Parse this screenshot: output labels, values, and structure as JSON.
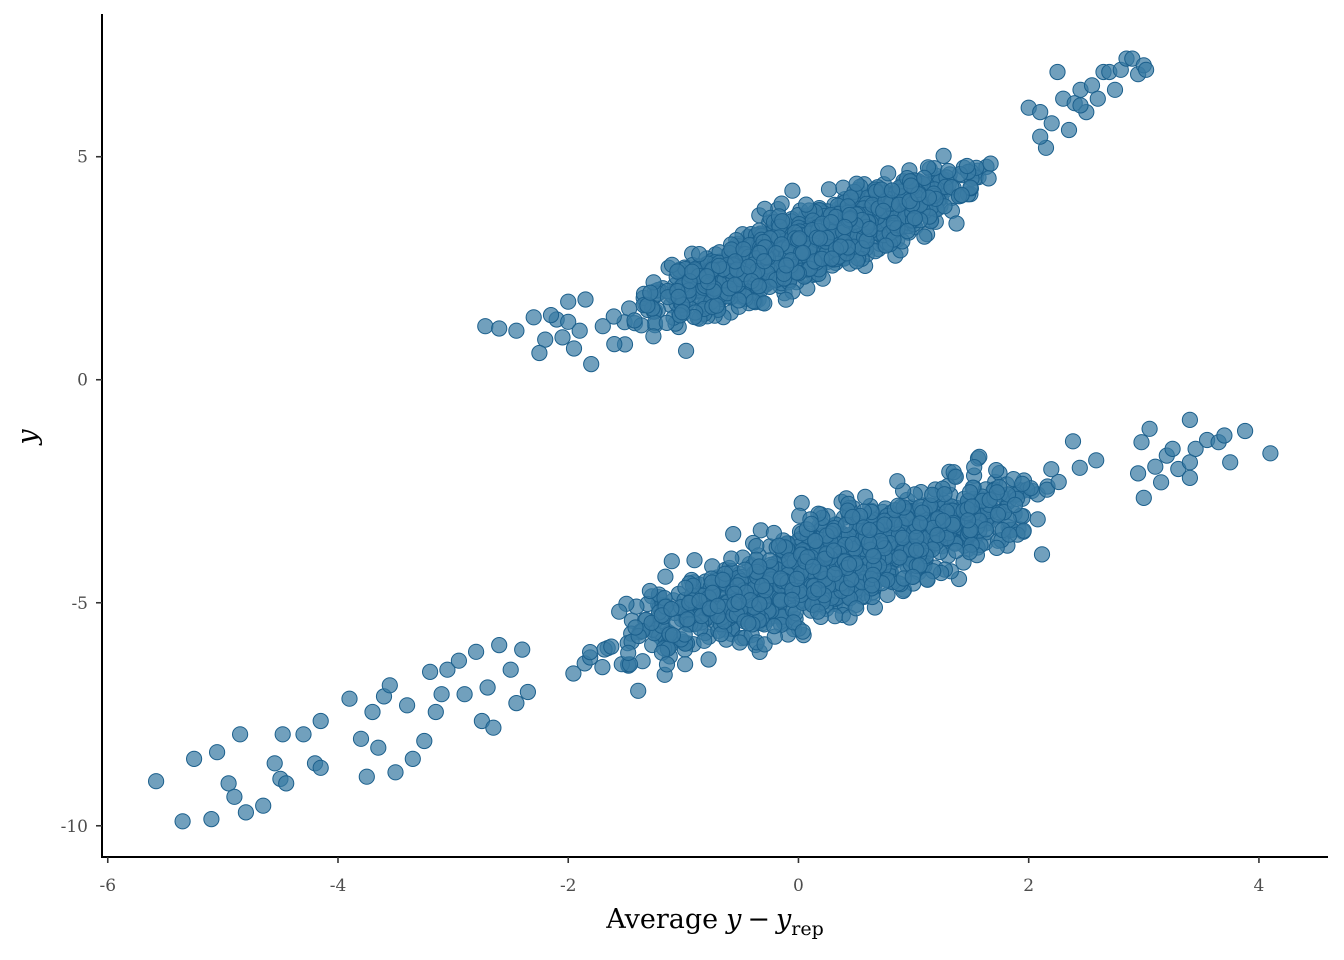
{
  "colors": {
    "point_fill": "#3a7ba3",
    "point_stroke": "#1b5f8c",
    "axis": "#000000",
    "tick_text": "#4d4d4d"
  },
  "chart_data": {
    "type": "scatter",
    "x_label_prefix": "Average",
    "x_label_y": "y",
    "x_label_minus": "−",
    "x_label_yrep_base": "y",
    "x_label_yrep_sub": "rep",
    "ylabel": "y",
    "xlim": [
      -6.05,
      4.6
    ],
    "ylim": [
      -10.7,
      8.2
    ],
    "xticks": [
      -6,
      -4,
      -2,
      0,
      2,
      4
    ],
    "xtick_labels": [
      "-6",
      "-4",
      "-2",
      "0",
      "2",
      "4"
    ],
    "yticks": [
      -10,
      -5,
      0,
      5
    ],
    "ytick_labels": [
      "-10",
      "-5",
      "0",
      "5"
    ],
    "grid": false,
    "legend": "none",
    "clusters": [
      {
        "name": "upper",
        "x_range": [
          -1.75,
          1.85
        ],
        "y_at_x": "y ≈ 2.96 + 1.02·x",
        "y_spread": 0.35,
        "n_points": 1600,
        "tail_points": [
          [
            -2.72,
            1.2
          ],
          [
            -2.6,
            1.15
          ],
          [
            -2.45,
            1.1
          ],
          [
            -2.3,
            1.4
          ],
          [
            -2.2,
            0.9
          ],
          [
            -2.25,
            0.6
          ],
          [
            -2.1,
            1.35
          ],
          [
            -2.05,
            0.95
          ],
          [
            -2.0,
            1.3
          ],
          [
            -1.95,
            0.7
          ],
          [
            -1.9,
            1.1
          ],
          [
            -1.8,
            0.35
          ],
          [
            -2.0,
            1.75
          ],
          [
            -1.85,
            1.8
          ],
          [
            -2.15,
            1.45
          ],
          [
            -1.7,
            1.2
          ],
          [
            -1.6,
            0.8
          ],
          [
            2.0,
            6.1
          ],
          [
            2.1,
            6.0
          ],
          [
            2.15,
            5.2
          ],
          [
            2.2,
            5.75
          ],
          [
            2.3,
            6.3
          ],
          [
            2.35,
            5.6
          ],
          [
            2.4,
            6.2
          ],
          [
            2.45,
            6.5
          ],
          [
            2.5,
            6.0
          ],
          [
            2.55,
            6.6
          ],
          [
            2.6,
            6.3
          ],
          [
            2.65,
            6.9
          ],
          [
            2.7,
            6.9
          ],
          [
            2.75,
            6.5
          ],
          [
            2.8,
            6.95
          ],
          [
            2.85,
            7.2
          ],
          [
            2.9,
            7.2
          ],
          [
            2.95,
            6.85
          ],
          [
            3.0,
            7.05
          ],
          [
            3.02,
            6.95
          ],
          [
            2.25,
            6.9
          ],
          [
            2.45,
            6.15
          ],
          [
            2.1,
            5.45
          ]
        ]
      },
      {
        "name": "lower",
        "x_range": [
          -2.3,
          2.9
        ],
        "y_at_x": "y ≈ -4.44 + 0.90·x",
        "y_spread": 0.5,
        "n_points": 1300,
        "tail_points": [
          [
            -5.58,
            -9.0
          ],
          [
            -5.35,
            -9.9
          ],
          [
            -5.25,
            -8.5
          ],
          [
            -5.1,
            -9.85
          ],
          [
            -5.05,
            -8.35
          ],
          [
            -4.95,
            -9.05
          ],
          [
            -4.9,
            -9.35
          ],
          [
            -4.85,
            -7.95
          ],
          [
            -4.8,
            -9.7
          ],
          [
            -4.65,
            -9.55
          ],
          [
            -4.55,
            -8.6
          ],
          [
            -4.5,
            -8.95
          ],
          [
            -4.48,
            -7.95
          ],
          [
            -4.45,
            -9.05
          ],
          [
            -4.3,
            -7.95
          ],
          [
            -4.2,
            -8.6
          ],
          [
            -4.15,
            -7.65
          ],
          [
            -4.15,
            -8.7
          ],
          [
            -3.9,
            -7.15
          ],
          [
            -3.8,
            -8.05
          ],
          [
            -3.75,
            -8.9
          ],
          [
            -3.7,
            -7.45
          ],
          [
            -3.65,
            -8.25
          ],
          [
            -3.6,
            -7.1
          ],
          [
            -3.55,
            -6.85
          ],
          [
            -3.5,
            -8.8
          ],
          [
            -3.4,
            -7.3
          ],
          [
            -3.35,
            -8.5
          ],
          [
            -3.25,
            -8.1
          ],
          [
            -3.2,
            -6.55
          ],
          [
            -3.15,
            -7.45
          ],
          [
            -3.1,
            -7.05
          ],
          [
            -3.05,
            -6.5
          ],
          [
            -2.95,
            -6.3
          ],
          [
            -2.9,
            -7.05
          ],
          [
            -2.8,
            -6.1
          ],
          [
            -2.75,
            -7.65
          ],
          [
            -2.7,
            -6.9
          ],
          [
            -2.65,
            -7.8
          ],
          [
            -2.6,
            -5.95
          ],
          [
            -2.5,
            -6.5
          ],
          [
            -2.45,
            -7.25
          ],
          [
            -2.4,
            -6.05
          ],
          [
            -2.35,
            -7.0
          ],
          [
            3.0,
            -2.65
          ],
          [
            3.05,
            -1.1
          ],
          [
            3.1,
            -1.95
          ],
          [
            3.2,
            -1.7
          ],
          [
            3.25,
            -1.55
          ],
          [
            3.3,
            -2.0
          ],
          [
            3.4,
            -1.85
          ],
          [
            3.4,
            -0.9
          ],
          [
            3.45,
            -1.55
          ],
          [
            3.55,
            -1.35
          ],
          [
            3.65,
            -1.4
          ],
          [
            3.7,
            -1.25
          ],
          [
            3.75,
            -1.85
          ],
          [
            3.88,
            -1.15
          ],
          [
            4.1,
            -1.65
          ],
          [
            3.15,
            -2.3
          ],
          [
            3.4,
            -2.2
          ],
          [
            2.95,
            -2.1
          ],
          [
            2.98,
            -1.4
          ]
        ]
      }
    ]
  }
}
